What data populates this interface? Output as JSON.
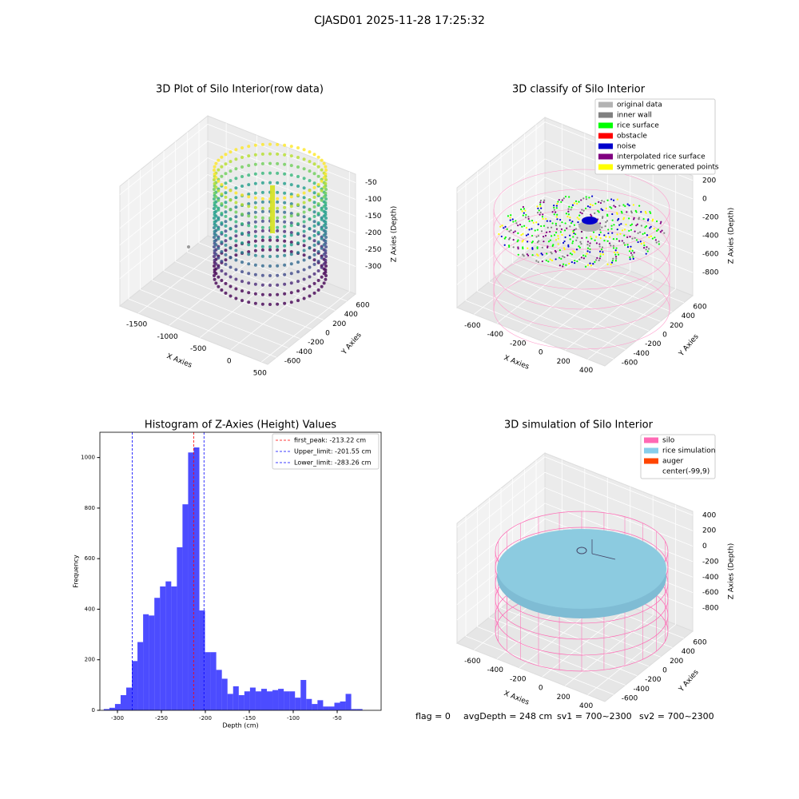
{
  "title": "CJASD01 2025-11-28 17:25:32",
  "chart_data": [
    {
      "type": "scatter3d",
      "title": "3D Plot of Silo Interior(row data)",
      "xlabel": "X Axies",
      "ylabel": "Y Axies",
      "zlabel": "Z Axies (Depth)",
      "xlim": [
        -1800,
        600
      ],
      "xticks": [
        -1500,
        -1000,
        -500,
        0,
        500
      ],
      "ylim": [
        -750,
        750
      ],
      "yticks": [
        -600,
        -400,
        -200,
        0,
        200,
        400,
        600
      ],
      "zlim": [
        -382,
        -25
      ],
      "zticks": [
        -300,
        -250,
        -200,
        -150,
        -100,
        -50
      ]
    },
    {
      "type": "scatter3d",
      "title": "3D classify of Silo Interior",
      "xlabel": "X Axies",
      "ylabel": "Y Axies",
      "zlabel": "Z Axies (Depth)",
      "xlim": [
        -750,
        550
      ],
      "xticks": [
        -600,
        -400,
        -200,
        0,
        200,
        400
      ],
      "ylim": [
        -750,
        750
      ],
      "yticks": [
        -600,
        -400,
        -200,
        0,
        200,
        400,
        600
      ],
      "zlim": [
        -1050,
        250
      ],
      "zticks": [
        -800,
        -600,
        -400,
        -200,
        0,
        200
      ],
      "legend_position": "upper right",
      "legend": [
        {
          "name": "original data",
          "color": "#b3b3b3"
        },
        {
          "name": "inner wall",
          "color": "#808080"
        },
        {
          "name": "rice surface",
          "color": "#00ff00"
        },
        {
          "name": "obstacle",
          "color": "#ff0000"
        },
        {
          "name": "noise",
          "color": "#0000cc"
        },
        {
          "name": "interpolated rice surface",
          "color": "#800080"
        },
        {
          "name": "symmetric generated points",
          "color": "#ffff00"
        }
      ]
    },
    {
      "type": "histogram",
      "title": "Histogram of Z-Axies (Height) Values",
      "xlabel": "Depth (cm)",
      "ylabel": "Frequency",
      "color": "#0000ff",
      "alpha": 0.7,
      "bins": [
        -315.6,
        -309.2,
        -302.8,
        -296.4,
        -290,
        -283.6,
        -277.2,
        -270.8,
        -264.4,
        -258,
        -251.6,
        -245.2,
        -238.8,
        -232.4,
        -226,
        -219.6,
        -213.2,
        -206.8,
        -200.4,
        -194,
        -187.6,
        -181.2,
        -174.8,
        -168.4,
        -162,
        -155.6,
        -149.2,
        -142.8,
        -136.4,
        -130,
        -123.6,
        -117.2,
        -110.8,
        -104.4,
        -98,
        -91.6,
        -85.2,
        -78.8,
        -72.4,
        -66,
        -59.6,
        -53.2,
        -46.8,
        -40.4,
        -34,
        -27.6,
        -21.2
      ],
      "counts": [
        5,
        10,
        25,
        60,
        90,
        195,
        270,
        380,
        375,
        445,
        490,
        510,
        490,
        645,
        815,
        1020,
        1040,
        395,
        230,
        230,
        160,
        125,
        65,
        95,
        60,
        75,
        90,
        75,
        85,
        75,
        80,
        85,
        75,
        75,
        50,
        120,
        45,
        25,
        40,
        15,
        15,
        30,
        35,
        65,
        5,
        5
      ],
      "xlim": [
        -320,
        0
      ],
      "xticks": [
        -300,
        -250,
        -200,
        -150,
        -100,
        -50
      ],
      "ylim": [
        0,
        1100
      ],
      "yticks": [
        0,
        200,
        400,
        600,
        800,
        1000
      ],
      "legend_position": "upper right",
      "vlines": [
        {
          "name": "first_peak: -213.22 cm",
          "value": -213.22,
          "color": "#ff0000"
        },
        {
          "name": "Upper_limit: -201.55 cm",
          "value": -201.55,
          "color": "#0000ff"
        },
        {
          "name": "Lower_limit: -283.26 cm",
          "value": -283.26,
          "color": "#0000ff"
        }
      ]
    },
    {
      "type": "surface3d",
      "title": "3D simulation of Silo Interior",
      "xlabel": "X Axies",
      "ylabel": "Y Axies",
      "zlabel": "Z Axies (Depth)",
      "xlim": [
        -750,
        550
      ],
      "xticks": [
        -600,
        -400,
        -200,
        0,
        200,
        400
      ],
      "ylim": [
        -750,
        750
      ],
      "yticks": [
        -600,
        -400,
        -200,
        0,
        200,
        400,
        600
      ],
      "zlim": [
        -1100,
        450
      ],
      "zticks": [
        -800,
        -600,
        -400,
        -200,
        0,
        200,
        400
      ],
      "legend_position": "upper right",
      "legend": [
        {
          "name": "silo",
          "color": "#ff69b4"
        },
        {
          "name": "rice simulation",
          "color": "#87ceeb"
        },
        {
          "name": "auger",
          "color": "#ff4500"
        },
        {
          "name": "center(-99,9)",
          "color": "#ffffff"
        }
      ]
    }
  ],
  "footer": [
    "flag = 0",
    "avgDepth = 248 cm",
    "sv1 = 700~2300",
    "sv2 = 700~2300"
  ]
}
